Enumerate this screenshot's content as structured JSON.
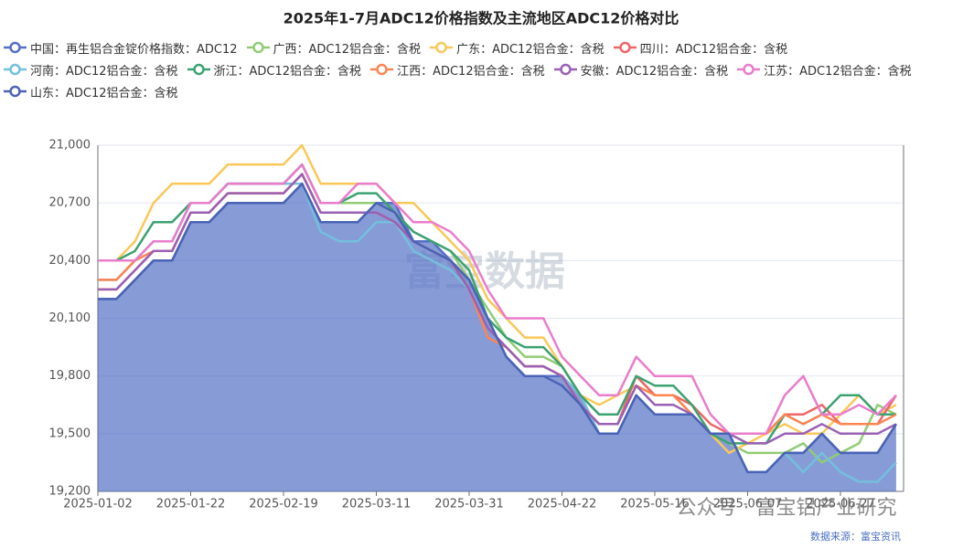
{
  "chart_data": {
    "type": "line",
    "title": "2025年1-7月ADC12价格指数及主流地区ADC12价格对比",
    "source": "数据来源：富宝资讯",
    "watermark": "富宝数据",
    "watermark2": "公众号 · 富宝铝产业研究",
    "categories": [
      "2025-01-02",
      null,
      null,
      null,
      null,
      "2025-01-22",
      null,
      null,
      null,
      null,
      "2025-02-19",
      null,
      null,
      null,
      null,
      "2025-03-11",
      null,
      null,
      null,
      null,
      "2025-03-31",
      null,
      null,
      null,
      null,
      "2025-04-22",
      null,
      null,
      null,
      null,
      "2025-05-16",
      null,
      null,
      null,
      null,
      "2025-06-07",
      null,
      null,
      null,
      null,
      "2025-06-27",
      null,
      null,
      null
    ],
    "ylim": [
      19200,
      21000
    ],
    "yticks": [
      {
        "value": 19200,
        "label": "19,200"
      },
      {
        "value": 19500,
        "label": "19,500"
      },
      {
        "value": 19800,
        "label": "19,800"
      },
      {
        "value": 20100,
        "label": "20,100"
      },
      {
        "value": 20400,
        "label": "20,400"
      },
      {
        "value": 20700,
        "label": "20,700"
      },
      {
        "value": 21000,
        "label": "21,000"
      }
    ],
    "grid": true,
    "area_series": 0,
    "series": [
      {
        "name": "中国：再生铝合金锭价格指数：ADC12",
        "color": "#5470c6",
        "values": [
          20200,
          20200,
          20300,
          20400,
          20400,
          20600,
          20600,
          20700,
          20700,
          20700,
          20700,
          20800,
          20600,
          20600,
          20600,
          20700,
          20700,
          20500,
          20500,
          20400,
          20300,
          20100,
          19900,
          19800,
          19800,
          19800,
          19700,
          19500,
          19500,
          19700,
          19600,
          19600,
          19600,
          19500,
          19500,
          19300,
          19300,
          19400,
          19400,
          19500,
          19400,
          19400,
          19400,
          19550
        ]
      },
      {
        "name": "广西：ADC12铝合金：含税",
        "color": "#91cc75",
        "values": [
          20300,
          20300,
          20400,
          20500,
          20500,
          20700,
          20700,
          20800,
          20800,
          20800,
          20800,
          20900,
          20700,
          20700,
          20700,
          20700,
          20650,
          20550,
          20500,
          20450,
          20300,
          20150,
          20000,
          19900,
          19900,
          19850,
          19700,
          19600,
          19600,
          19800,
          19700,
          19700,
          19650,
          19500,
          19450,
          19400,
          19400,
          19400,
          19450,
          19350,
          19400,
          19450,
          19650,
          19600
        ]
      },
      {
        "name": "广东：ADC12铝合金：含税",
        "color": "#fac858",
        "values": [
          20400,
          20400,
          20500,
          20700,
          20800,
          20800,
          20800,
          20900,
          20900,
          20900,
          20900,
          21000,
          20800,
          20800,
          20800,
          20800,
          20700,
          20700,
          20600,
          20500,
          20400,
          20200,
          20100,
          20000,
          20000,
          19850,
          19700,
          19650,
          19700,
          19750,
          19700,
          19700,
          19600,
          19500,
          19400,
          19450,
          19500,
          19550,
          19500,
          19500,
          19600,
          19700,
          19600,
          19650
        ]
      },
      {
        "name": "四川：ADC12铝合金：含税",
        "color": "#ee6666",
        "values": [
          20250,
          20250,
          20350,
          20450,
          20450,
          20650,
          20650,
          20750,
          20750,
          20750,
          20750,
          20850,
          20650,
          20650,
          20650,
          20650,
          20600,
          20500,
          20450,
          20400,
          20250,
          20050,
          19950,
          19850,
          19850,
          19800,
          19650,
          19550,
          19550,
          19800,
          19700,
          19700,
          19650,
          19550,
          19500,
          19500,
          19500,
          19600,
          19600,
          19650,
          19550,
          19550,
          19550,
          19700
        ]
      },
      {
        "name": "河南：ADC12铝合金：含税",
        "color": "#73c0de",
        "values": [
          20300,
          20300,
          20400,
          20500,
          20500,
          20700,
          20700,
          20800,
          20800,
          20800,
          20800,
          20800,
          20550,
          20500,
          20500,
          20600,
          20600,
          20450,
          20400,
          20350,
          20250,
          20050,
          19950,
          19850,
          19850,
          19800,
          19700,
          19500,
          19500,
          19700,
          19600,
          19600,
          19600,
          19500,
          19500,
          19300,
          19300,
          19400,
          19300,
          19400,
          19300,
          19250,
          19250,
          19350
        ]
      },
      {
        "name": "浙江：ADC12铝合金：含税",
        "color": "#3ba272",
        "values": [
          20400,
          20400,
          20450,
          20600,
          20600,
          20700,
          20700,
          20800,
          20800,
          20800,
          20800,
          20900,
          20700,
          20700,
          20750,
          20750,
          20650,
          20550,
          20500,
          20450,
          20350,
          20100,
          20000,
          19950,
          19950,
          19850,
          19700,
          19600,
          19600,
          19800,
          19750,
          19750,
          19650,
          19500,
          19450,
          19450,
          19450,
          19600,
          19550,
          19600,
          19700,
          19700,
          19600,
          19600
        ]
      },
      {
        "name": "江西：ADC12铝合金：含税",
        "color": "#fc8452",
        "values": [
          20300,
          20300,
          20400,
          20450,
          20450,
          20650,
          20650,
          20750,
          20750,
          20750,
          20750,
          20850,
          20650,
          20650,
          20650,
          20650,
          20600,
          20500,
          20450,
          20400,
          20250,
          20000,
          19950,
          19850,
          19850,
          19800,
          19650,
          19550,
          19550,
          19750,
          19700,
          19700,
          19600,
          19500,
          19500,
          19500,
          19500,
          19600,
          19550,
          19600,
          19550,
          19550,
          19550,
          19600
        ]
      },
      {
        "name": "安徽：ADC12铝合金：含税",
        "color": "#9a60b4",
        "values": [
          20250,
          20250,
          20350,
          20450,
          20450,
          20650,
          20650,
          20750,
          20750,
          20750,
          20750,
          20850,
          20650,
          20650,
          20650,
          20650,
          20600,
          20500,
          20450,
          20400,
          20250,
          20050,
          19950,
          19850,
          19850,
          19800,
          19650,
          19550,
          19550,
          19750,
          19650,
          19650,
          19600,
          19500,
          19500,
          19450,
          19450,
          19500,
          19500,
          19550,
          19500,
          19500,
          19500,
          19550
        ]
      },
      {
        "name": "江苏：ADC12铝合金：含税",
        "color": "#ea7ccc",
        "values": [
          20400,
          20400,
          20400,
          20500,
          20500,
          20700,
          20700,
          20800,
          20800,
          20800,
          20800,
          20900,
          20700,
          20700,
          20800,
          20800,
          20700,
          20600,
          20600,
          20550,
          20450,
          20250,
          20100,
          20100,
          20100,
          19900,
          19800,
          19700,
          19700,
          19900,
          19800,
          19800,
          19800,
          19600,
          19500,
          19500,
          19500,
          19700,
          19800,
          19600,
          19600,
          19650,
          19600,
          19700
        ]
      },
      {
        "name": "山东：ADC12铝合金：含税",
        "color": "#4a63b5",
        "values": [
          20200,
          20200,
          20300,
          20400,
          20400,
          20600,
          20600,
          20700,
          20700,
          20700,
          20700,
          20800,
          20600,
          20600,
          20600,
          20700,
          20650,
          20500,
          20450,
          20400,
          20300,
          20100,
          19900,
          19800,
          19800,
          19750,
          19650,
          19500,
          19500,
          19700,
          19600,
          19600,
          19600,
          19500,
          19500,
          19300,
          19300,
          19400,
          19400,
          19500,
          19400,
          19400,
          19400,
          19550
        ]
      }
    ]
  }
}
